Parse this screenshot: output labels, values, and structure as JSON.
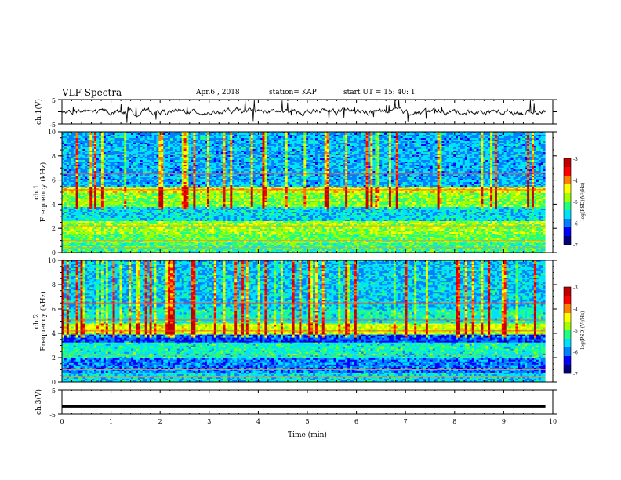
{
  "header": {
    "title": "VLF Spectra",
    "date": "Apr.6 , 2018",
    "station": "station= KAP",
    "start": "start UT = 15: 40: 1"
  },
  "colors": {
    "colormap": [
      "#00007a",
      "#0000ff",
      "#0080ff",
      "#00e0ff",
      "#20ff80",
      "#a0ff00",
      "#ffff00",
      "#ff8000",
      "#ff0000",
      "#c00000"
    ],
    "trace": "#000000"
  },
  "chart_data": [
    {
      "type": "line",
      "name": "ch1-waveform",
      "ylabel": "ch.1(V)",
      "yticks": [
        "5",
        "-5"
      ],
      "ylim": [
        -5,
        5
      ],
      "x_range": [
        0,
        10
      ],
      "x_unit": "min",
      "note": "noisy trace centered near 0 V, mostly between -1 and +1 V with spikes"
    },
    {
      "type": "heatmap",
      "name": "ch1-spectrogram",
      "ylabel": "ch.1 Frequency (kHz)",
      "yticks": [
        "0",
        "2",
        "4",
        "6",
        "8",
        "10"
      ],
      "ylim": [
        0,
        10
      ],
      "xlim": [
        0,
        10
      ],
      "colorbar": {
        "label": "log(PSD)(V²/Hz)",
        "ticks": [
          "-3",
          "-4",
          "-5",
          "-6",
          "-7"
        ],
        "range": [
          -7,
          -3
        ]
      },
      "features": {
        "band_levels_kHz": [
          {
            "range": [
              0,
              0.8
            ],
            "level": -5.2
          },
          {
            "range": [
              0.8,
              1.6
            ],
            "level": -5.0
          },
          {
            "range": [
              1.6,
              2.6
            ],
            "level": -4.8
          },
          {
            "range": [
              2.6,
              3.8
            ],
            "level": -5.6
          },
          {
            "range": [
              3.8,
              5.0
            ],
            "level": -4.9
          },
          {
            "range": [
              5.0,
              5.4
            ],
            "level": -4.5
          },
          {
            "range": [
              5.4,
              10
            ],
            "level": -5.8
          }
        ],
        "lines_kHz": [
          0.4,
          1.0,
          2.2,
          4.2,
          5.1,
          5.2,
          6.5,
          8.1
        ],
        "impulsive_columns": "dense vertical streaks (sferics) spanning 4-10 kHz"
      }
    },
    {
      "type": "heatmap",
      "name": "ch2-spectrogram",
      "ylabel": "ch.2 Frequency (kHz)",
      "yticks": [
        "0",
        "2",
        "4",
        "6",
        "8",
        "10"
      ],
      "ylim": [
        0,
        10
      ],
      "xlim": [
        0,
        10
      ],
      "colorbar": {
        "label": "log(PSD)(V²/Hz)",
        "ticks": [
          "-3",
          "-4",
          "-5",
          "-6",
          "-7"
        ],
        "range": [
          -7,
          -3
        ]
      },
      "features": {
        "band_levels_kHz": [
          {
            "range": [
              0,
              0.8
            ],
            "level": -5.6
          },
          {
            "range": [
              0.8,
              2.0
            ],
            "level": -6.0
          },
          {
            "range": [
              2.0,
              3.2
            ],
            "level": -5.4
          },
          {
            "range": [
              3.2,
              3.9
            ],
            "level": -6.2
          },
          {
            "range": [
              3.9,
              4.8
            ],
            "level": -4.6
          },
          {
            "range": [
              4.8,
              6.0
            ],
            "level": -5.4
          },
          {
            "range": [
              6.0,
              10
            ],
            "level": -5.7
          }
        ],
        "lines_kHz": [
          0.4,
          1.0,
          2.2,
          4.2,
          5.1,
          6.5
        ],
        "impulsive_columns": "dense vertical streaks (sferics) spanning 4-10 kHz"
      }
    },
    {
      "type": "line",
      "name": "ch3-waveform",
      "ylabel": "ch.3(V)",
      "yticks": [
        "5",
        "-5"
      ],
      "ylim": [
        -5,
        5
      ],
      "x": [
        0,
        9.85
      ],
      "y": [
        -1.8,
        -1.8
      ],
      "note": "flat thick trace near -1.8 V"
    }
  ],
  "x_axis": {
    "label": "Time (min)",
    "ticks": [
      "0",
      "1",
      "2",
      "3",
      "4",
      "5",
      "6",
      "7",
      "8",
      "9",
      "10"
    ],
    "range": [
      0,
      10
    ]
  }
}
